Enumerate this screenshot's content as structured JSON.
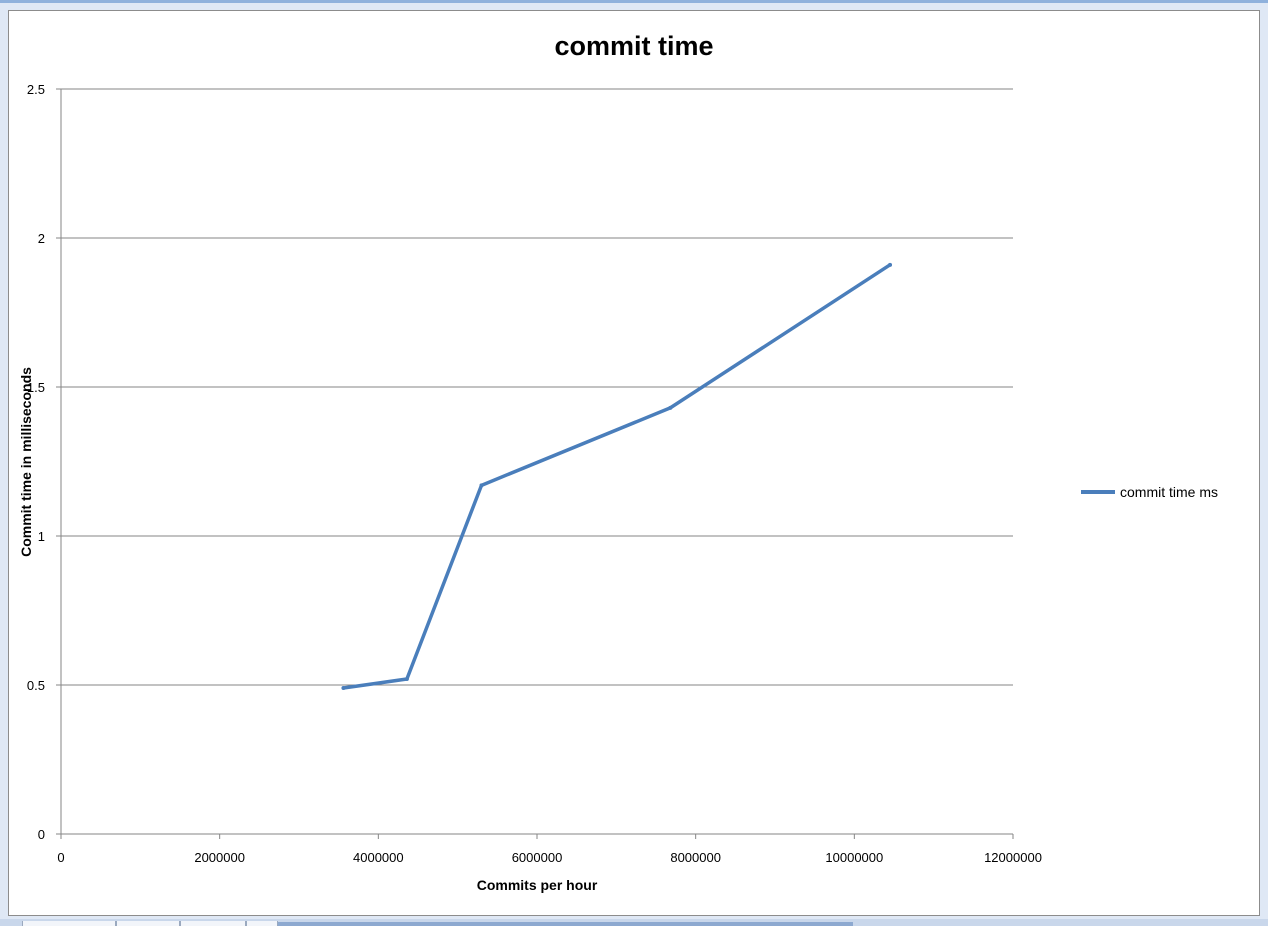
{
  "chart_data": {
    "type": "line",
    "title": "commit time",
    "xlabel": "Commits per hour",
    "ylabel": "Commit time in milliseconds",
    "xlim": [
      0,
      12000000
    ],
    "ylim": [
      0,
      2.5
    ],
    "x_ticks": [
      "0",
      "2000000",
      "4000000",
      "6000000",
      "8000000",
      "10000000",
      "12000000"
    ],
    "y_ticks": [
      "0",
      "0.5",
      "1",
      "1.5",
      "2",
      "2.5"
    ],
    "grid": "horizontal major gridlines",
    "legend_position": "right",
    "series": [
      {
        "name": "commit time ms",
        "color": "#4a7ebb",
        "x": [
          3560000,
          4360000,
          5300000,
          7680000,
          10450000
        ],
        "y": [
          0.49,
          0.52,
          1.17,
          1.43,
          1.91
        ]
      }
    ]
  }
}
